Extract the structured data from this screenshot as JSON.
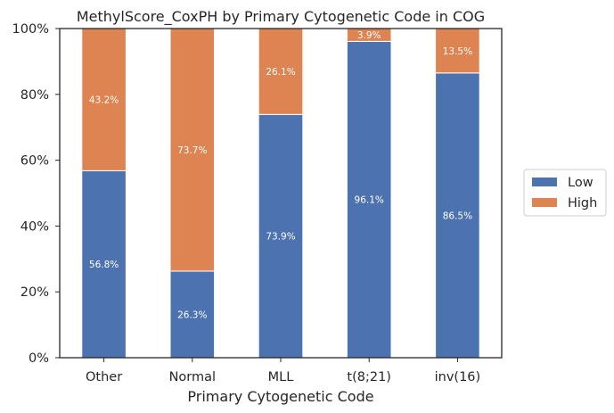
{
  "chart_data": {
    "type": "bar",
    "stacked": true,
    "title": "MethylScore_CoxPH by Primary Cytogenetic Code in COG",
    "xlabel": "Primary Cytogenetic Code",
    "ylabel": "",
    "categories": [
      "Other",
      "Normal",
      "MLL",
      "t(8;21)",
      "inv(16)"
    ],
    "ylim": [
      0,
      100
    ],
    "yticks": [
      0,
      20,
      40,
      60,
      80,
      100
    ],
    "ytick_labels": [
      "0%",
      "20%",
      "40%",
      "60%",
      "80%",
      "100%"
    ],
    "series": [
      {
        "name": "Low",
        "color": "#4c72b0",
        "values": [
          56.8,
          26.3,
          73.9,
          96.1,
          86.5
        ],
        "labels": [
          "56.8%",
          "26.3%",
          "73.9%",
          "96.1%",
          "86.5%"
        ]
      },
      {
        "name": "High",
        "color": "#dd8452",
        "values": [
          43.2,
          73.7,
          26.1,
          3.9,
          13.5
        ],
        "labels": [
          "43.2%",
          "73.7%",
          "26.1%",
          "3.9%",
          "13.5%"
        ]
      }
    ],
    "legend_position": "right",
    "grid": false
  }
}
